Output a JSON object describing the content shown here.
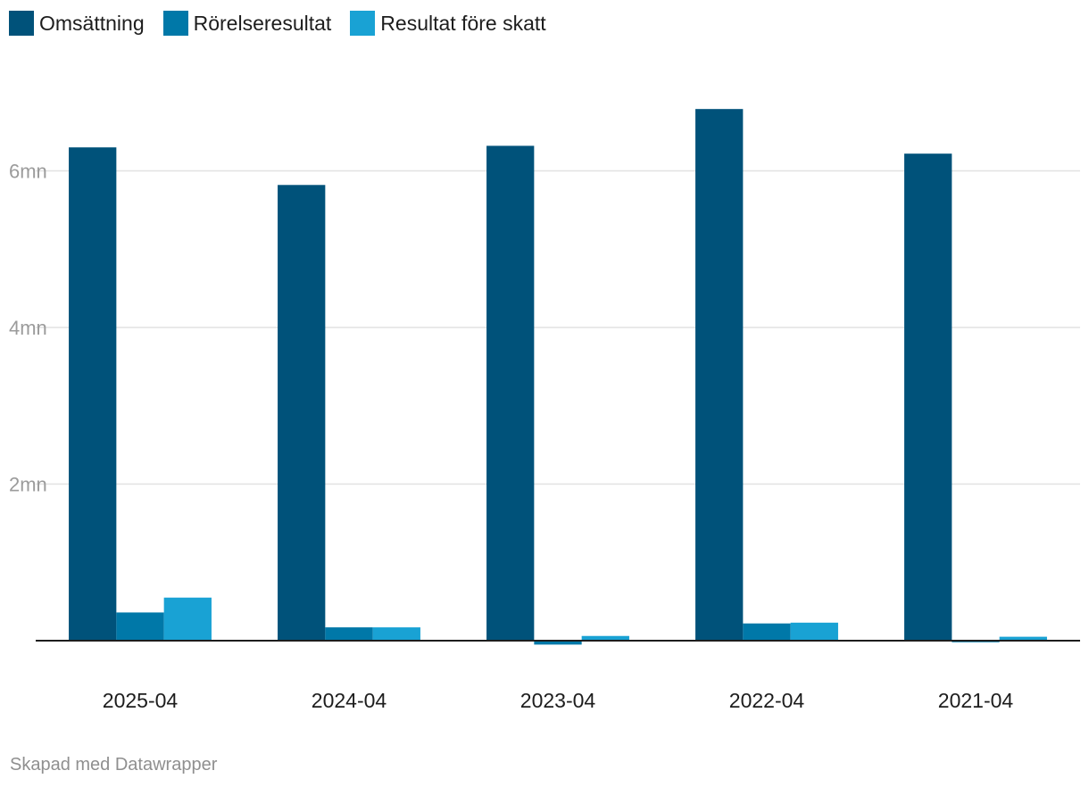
{
  "chart_data": {
    "type": "bar",
    "categories": [
      "2025-04",
      "2024-04",
      "2023-04",
      "2022-04",
      "2021-04"
    ],
    "series": [
      {
        "name": "Omsättning",
        "color": "#00527a",
        "values": [
          6300000,
          5820000,
          6320000,
          6790000,
          6220000
        ]
      },
      {
        "name": "Rörelseresultat",
        "color": "#0078a8",
        "values": [
          360000,
          170000,
          -50000,
          220000,
          -20000
        ]
      },
      {
        "name": "Resultat före skatt",
        "color": "#19a2d4",
        "values": [
          550000,
          170000,
          60000,
          230000,
          50000
        ]
      }
    ],
    "y_ticks": [
      {
        "value": 2000000,
        "label": "2mn"
      },
      {
        "value": 4000000,
        "label": "4mn"
      },
      {
        "value": 6000000,
        "label": "6mn"
      }
    ],
    "ylim": [
      -100000,
      7000000
    ],
    "grid": true,
    "legend": "top-left"
  },
  "credit": "Skapad med Datawrapper"
}
